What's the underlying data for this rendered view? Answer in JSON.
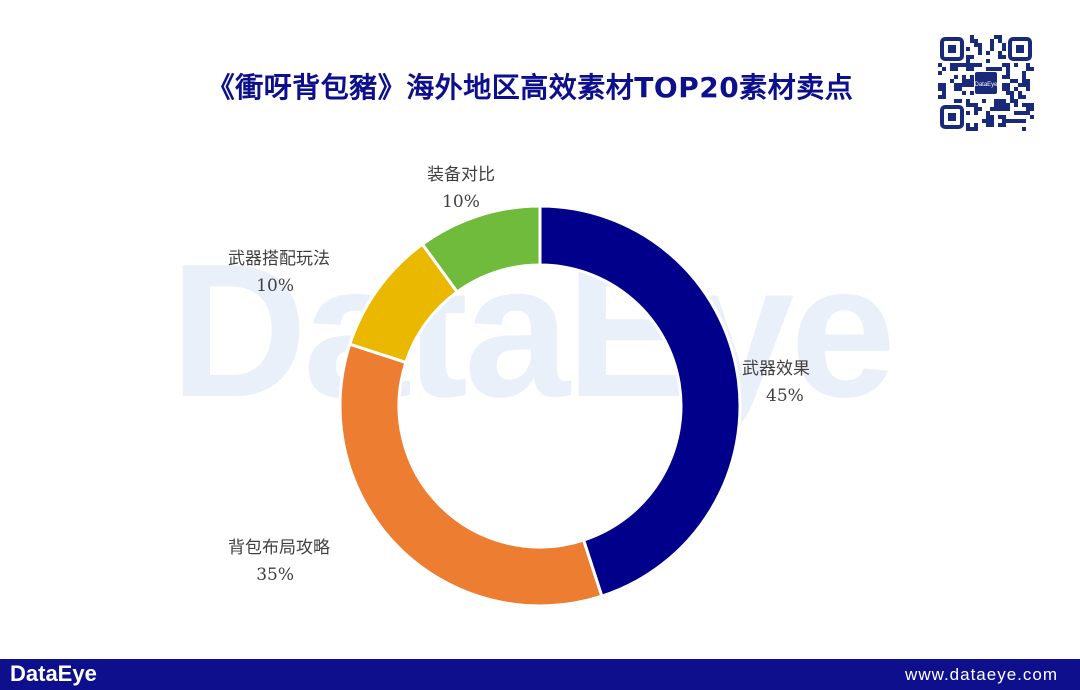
{
  "header": {
    "title": "《衝呀背包豬》海外地区高效素材TOP20素材卖点"
  },
  "watermark": {
    "text": "DataEye"
  },
  "qr_code": {
    "icon": "qr-code-icon",
    "logo_text": "DataEye"
  },
  "footer": {
    "brand": "DataEye",
    "url": "www.dataeye.com"
  },
  "colors": {
    "title": "#0d0f8c",
    "footer_bg": "#0d0f8c"
  },
  "chart_data": {
    "type": "pie",
    "style": "donut",
    "title": "《衝呀背包豬》海外地区高效素材TOP20素材卖点",
    "slices": [
      {
        "label": "武器效果",
        "value": 45,
        "display": "45%",
        "color": "#00008b"
      },
      {
        "label": "背包布局攻略",
        "value": 35,
        "display": "35%",
        "color": "#ed7d31"
      },
      {
        "label": "武器搭配玩法",
        "value": 10,
        "display": "10%",
        "color": "#ebb800"
      },
      {
        "label": "装备对比",
        "value": 10,
        "display": "10%",
        "color": "#70bb3b"
      }
    ],
    "start_angle_deg": 0,
    "direction": "clockwise",
    "legend": "none"
  }
}
